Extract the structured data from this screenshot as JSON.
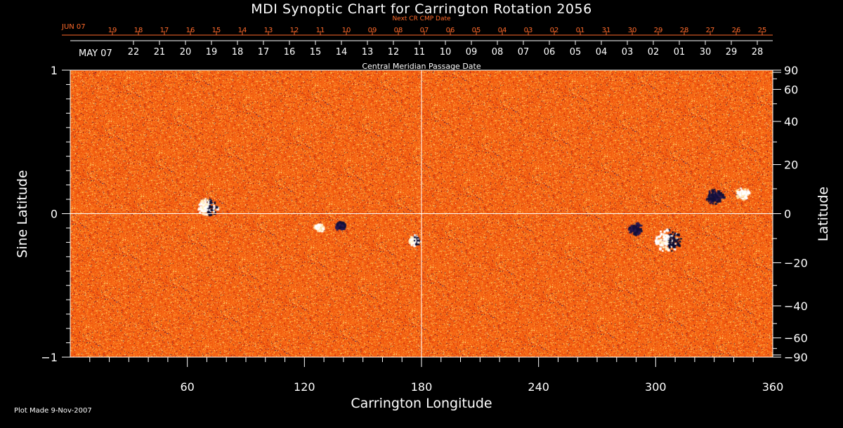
{
  "chart_data": {
    "type": "heatmap",
    "title": "MDI Synoptic Chart for Carrington Rotation 2056",
    "xlabel": "Carrington Longitude",
    "ylabel_left": "Sine Latitude",
    "ylabel_right": "Latitude",
    "xlim": [
      0,
      360
    ],
    "ylim": [
      -1,
      1
    ],
    "x_ticks": [
      60,
      120,
      180,
      240,
      300,
      360
    ],
    "y_ticks_left": [
      "−1",
      "0",
      "1"
    ],
    "y_ticks_right": [
      {
        "label": "90",
        "lat": 90
      },
      {
        "label": "60",
        "lat": 60
      },
      {
        "label": "40",
        "lat": 40
      },
      {
        "label": "20",
        "lat": 20
      },
      {
        "label": "0",
        "lat": 0
      },
      {
        "label": "−20",
        "lat": -20
      },
      {
        "label": "−40",
        "lat": -40
      },
      {
        "label": "−60",
        "lat": -60
      },
      {
        "label": "−90",
        "lat": -90
      }
    ],
    "colormap": {
      "background": "#ff5a10",
      "low": "#c02800",
      "bright": "#ffd060",
      "white": "#ffffff",
      "dark": "#10103c"
    },
    "grid_lines": {
      "x": [
        180
      ],
      "y": [
        0
      ]
    },
    "active_regions": [
      {
        "lon": 70,
        "sinlat": 0.05,
        "polarity": "mixed",
        "strength": 1.0
      },
      {
        "lon": 127,
        "sinlat": -0.09,
        "polarity": "positive",
        "strength": 0.5
      },
      {
        "lon": 138,
        "sinlat": -0.08,
        "polarity": "negative",
        "strength": 0.5
      },
      {
        "lon": 176,
        "sinlat": -0.18,
        "polarity": "mixed",
        "strength": 0.6
      },
      {
        "lon": 289,
        "sinlat": -0.1,
        "polarity": "negative",
        "strength": 0.7
      },
      {
        "lon": 306,
        "sinlat": -0.18,
        "polarity": "mixed",
        "strength": 1.3
      },
      {
        "lon": 330,
        "sinlat": 0.12,
        "polarity": "negative",
        "strength": 0.9
      },
      {
        "lon": 344,
        "sinlat": 0.15,
        "polarity": "positive",
        "strength": 0.7
      }
    ],
    "cmp_axis": {
      "caption": "Central Meridian Passage Date",
      "first_label": "MAY 07",
      "dates": [
        "22",
        "21",
        "20",
        "19",
        "18",
        "17",
        "16",
        "15",
        "14",
        "13",
        "12",
        "11",
        "10",
        "09",
        "08",
        "07",
        "06",
        "05",
        "04",
        "03",
        "02",
        "01",
        "30",
        "29",
        "28"
      ]
    },
    "next_cmp_axis": {
      "caption": "Next CR CMP Date",
      "first_label": "JUN 07",
      "dates": [
        "19",
        "18",
        "17",
        "16",
        "15",
        "14",
        "13",
        "12",
        "11",
        "10",
        "09",
        "08",
        "07",
        "06",
        "05",
        "04",
        "03",
        "02",
        "01",
        "31",
        "30",
        "29",
        "28",
        "27",
        "26",
        "25"
      ]
    },
    "footer": "Plot Made  9-Nov-2007"
  }
}
